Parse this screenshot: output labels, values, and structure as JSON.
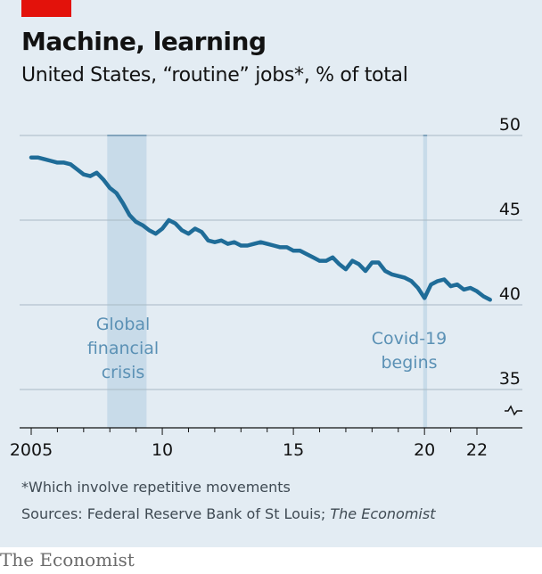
{
  "header": {
    "title": "Machine, learning",
    "subtitle": "United States, “routine” jobs*, % of total"
  },
  "footer": {
    "footnote": "*Which involve repetitive movements",
    "sources_prefix": "Sources: Federal Reserve Bank of St Louis; ",
    "sources_italic": "The Economist",
    "brand": "The Economist"
  },
  "colors": {
    "accent_red": "#e3120b",
    "background": "#e3ecf3",
    "line": "#1f6c98",
    "shade": "#c3d8e6",
    "annotation": "#5b91b5",
    "gridline": "#a9b8c4"
  },
  "chart_data": {
    "type": "line",
    "title": "Machine, learning",
    "subtitle": "United States, “routine” jobs*, % of total",
    "xlabel": "",
    "ylabel": "",
    "xlim": [
      2004.9,
      2022.6
    ],
    "ylim": [
      35,
      50
    ],
    "y_axis_break": true,
    "yticks": [
      35,
      40,
      45,
      50
    ],
    "xticks": [
      {
        "value": 2005,
        "label": "2005"
      },
      {
        "value": 2010,
        "label": "10"
      },
      {
        "value": 2015,
        "label": "15"
      },
      {
        "value": 2020,
        "label": "20"
      },
      {
        "value": 2022,
        "label": "22"
      }
    ],
    "grid": "horizontal",
    "shaded_periods": [
      {
        "start": 2007.9,
        "end": 2009.4,
        "label_lines": [
          "Global",
          "financial",
          "crisis"
        ]
      },
      {
        "start": 2019.95,
        "end": 2020.1,
        "label_lines": [
          "Covid-19",
          "begins"
        ]
      }
    ],
    "series": [
      {
        "x": [
          2005.0,
          2005.25,
          2005.5,
          2005.75,
          2006.0,
          2006.25,
          2006.5,
          2006.75,
          2007.0,
          2007.25,
          2007.5,
          2007.75,
          2008.0,
          2008.25,
          2008.5,
          2008.75,
          2009.0,
          2009.25,
          2009.5,
          2009.75,
          2010.0,
          2010.25,
          2010.5,
          2010.75,
          2011.0,
          2011.25,
          2011.5,
          2011.75,
          2012.0,
          2012.25,
          2012.5,
          2012.75,
          2013.0,
          2013.25,
          2013.5,
          2013.75,
          2014.0,
          2014.25,
          2014.5,
          2014.75,
          2015.0,
          2015.25,
          2015.5,
          2015.75,
          2016.0,
          2016.25,
          2016.5,
          2016.75,
          2017.0,
          2017.25,
          2017.5,
          2017.75,
          2018.0,
          2018.25,
          2018.5,
          2018.75,
          2019.0,
          2019.25,
          2019.5,
          2019.75,
          2020.0,
          2020.25,
          2020.5,
          2020.75,
          2021.0,
          2021.25,
          2021.5,
          2021.75,
          2022.0,
          2022.25,
          2022.5
        ],
        "values": [
          48.7,
          48.7,
          48.6,
          48.5,
          48.4,
          48.4,
          48.3,
          48.0,
          47.7,
          47.6,
          47.8,
          47.4,
          46.9,
          46.6,
          46.0,
          45.3,
          44.9,
          44.7,
          44.4,
          44.2,
          44.5,
          45.0,
          44.8,
          44.4,
          44.2,
          44.5,
          44.3,
          43.8,
          43.7,
          43.8,
          43.6,
          43.7,
          43.5,
          43.5,
          43.6,
          43.7,
          43.6,
          43.5,
          43.4,
          43.4,
          43.2,
          43.2,
          43.0,
          42.8,
          42.6,
          42.6,
          42.8,
          42.4,
          42.1,
          42.6,
          42.4,
          42.0,
          42.5,
          42.5,
          42.0,
          41.8,
          41.7,
          41.6,
          41.4,
          41.0,
          40.4,
          41.2,
          41.4,
          41.5,
          41.1,
          41.2,
          40.9,
          41.0,
          40.8,
          40.5,
          40.3
        ]
      }
    ]
  }
}
